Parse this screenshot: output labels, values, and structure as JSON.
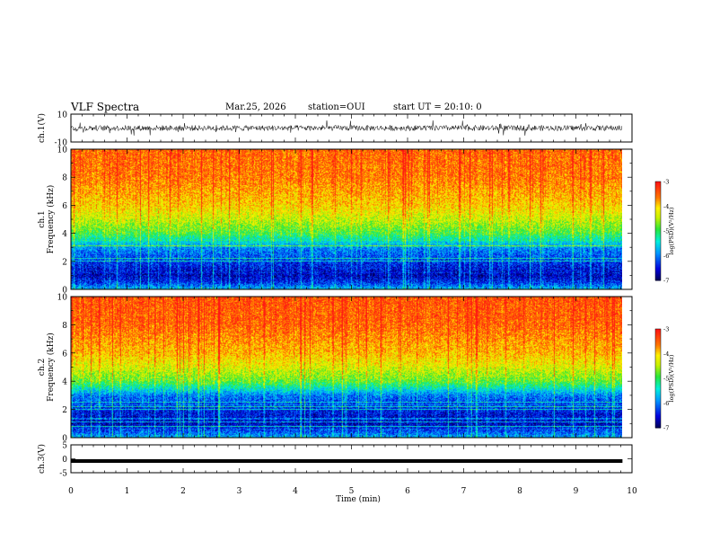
{
  "header": {
    "title": "VLF Spectra",
    "date": "Mar.25, 2026",
    "station": "station=OUI",
    "start": "start UT =  20:10: 0"
  },
  "chart_data": [
    {
      "type": "line",
      "panel": "waveform-ch1",
      "ylabel": "ch.1(V)",
      "ylim": [
        -10,
        10
      ],
      "yticks": [
        "10",
        "-10"
      ],
      "series": [
        {
          "kind": "noise",
          "mean": 0,
          "amplitude": 2.5
        }
      ]
    },
    {
      "type": "heatmap",
      "panel": "spectrogram-ch1",
      "ylabel": "ch.1\nFrequency (kHz)",
      "ylim": [
        0,
        10
      ],
      "yticks": [
        "0",
        "2",
        "4",
        "6",
        "8",
        "10"
      ],
      "xlim": [
        0,
        9.83
      ],
      "profile": [
        {
          "freq": 0.0,
          "level": -5.6
        },
        {
          "freq": 0.5,
          "level": -6.3
        },
        {
          "freq": 1.0,
          "level": -6.6
        },
        {
          "freq": 2.0,
          "level": -6.3
        },
        {
          "freq": 3.0,
          "level": -5.9
        },
        {
          "freq": 4.0,
          "level": -4.9
        },
        {
          "freq": 5.0,
          "level": -4.4
        },
        {
          "freq": 6.0,
          "level": -4.0
        },
        {
          "freq": 8.0,
          "level": -3.6
        },
        {
          "freq": 10.0,
          "level": -3.5
        }
      ],
      "colorbar": {
        "label": "log(PSD)(V²/Hz)",
        "range": [
          -7,
          -3
        ],
        "ticks": [
          "-3",
          "-4",
          "-5",
          "-6",
          "-7"
        ]
      }
    },
    {
      "type": "heatmap",
      "panel": "spectrogram-ch2",
      "ylabel": "ch.2\nFrequency (kHz)",
      "ylim": [
        0,
        10
      ],
      "yticks": [
        "0",
        "2",
        "4",
        "6",
        "8",
        "10"
      ],
      "xlim": [
        0,
        9.83
      ],
      "profile": [
        {
          "freq": 0.0,
          "level": -5.7
        },
        {
          "freq": 0.5,
          "level": -6.2
        },
        {
          "freq": 1.0,
          "level": -6.6
        },
        {
          "freq": 2.0,
          "level": -6.4
        },
        {
          "freq": 3.0,
          "level": -6.0
        },
        {
          "freq": 4.0,
          "level": -4.8
        },
        {
          "freq": 5.0,
          "level": -4.3
        },
        {
          "freq": 6.0,
          "level": -3.9
        },
        {
          "freq": 8.0,
          "level": -3.5
        },
        {
          "freq": 10.0,
          "level": -3.4
        }
      ],
      "colorbar": {
        "label": "log(PSD)(V²/Hz)",
        "range": [
          -7,
          -3
        ],
        "ticks": [
          "-3",
          "-4",
          "-5",
          "-6",
          "-7"
        ]
      }
    },
    {
      "type": "line",
      "panel": "waveform-ch3",
      "ylabel": "ch.3(V)",
      "ylim": [
        -5,
        5
      ],
      "yticks": [
        "5",
        "0",
        "-5"
      ],
      "series": [
        {
          "kind": "constant",
          "value": -0.8
        }
      ]
    }
  ],
  "xaxis": {
    "label": "Time (min)",
    "range": [
      0,
      10
    ],
    "ticks": [
      "0",
      "1",
      "2",
      "3",
      "4",
      "5",
      "6",
      "7",
      "8",
      "9",
      "10"
    ]
  }
}
